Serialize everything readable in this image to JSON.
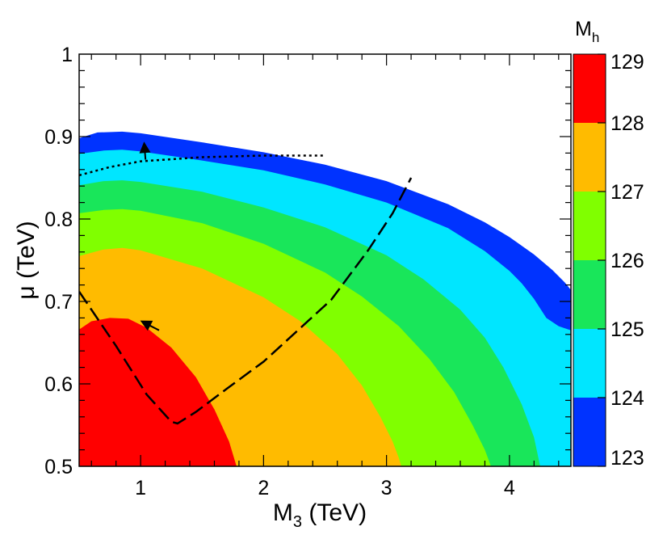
{
  "chart_data": {
    "type": "heatmap",
    "xlabel": {
      "main": "M",
      "sub": "3",
      "unit": " (TeV)"
    },
    "ylabel": "μ (TeV)",
    "xlim": [
      0.5,
      4.5
    ],
    "ylim": [
      0.5,
      1.0
    ],
    "x_ticks": [
      {
        "value": 1,
        "label": "1"
      },
      {
        "value": 2,
        "label": "2"
      },
      {
        "value": 3,
        "label": "3"
      },
      {
        "value": 4,
        "label": "4"
      }
    ],
    "y_ticks": [
      {
        "value": 0.5,
        "label": "0.5"
      },
      {
        "value": 0.6,
        "label": "0.6"
      },
      {
        "value": 0.7,
        "label": "0.7"
      },
      {
        "value": 0.8,
        "label": "0.8"
      },
      {
        "value": 0.9,
        "label": "0.9"
      },
      {
        "value": 1.0,
        "label": "1"
      }
    ],
    "colorbar": {
      "title": {
        "main": "M",
        "sub": "h"
      },
      "range": [
        123,
        129
      ],
      "tick_labels": [
        "123",
        "124",
        "125",
        "126",
        "127",
        "128",
        "129"
      ],
      "bands": [
        {
          "from": 123,
          "to": 124,
          "color": "#0033ff"
        },
        {
          "from": 124,
          "to": 125,
          "color": "#00e6ff"
        },
        {
          "from": 125,
          "to": 126,
          "color": "#19e65a"
        },
        {
          "from": 126,
          "to": 127,
          "color": "#80ff00"
        },
        {
          "from": 127,
          "to": 128,
          "color": "#ffbb00"
        },
        {
          "from": 128,
          "to": 129,
          "color": "#ff0000"
        }
      ]
    },
    "regions": [
      {
        "name": "Mh 123-124",
        "color": "#0033ff",
        "boundary": [
          [
            0.5,
            0.5
          ],
          [
            0.5,
            0.898
          ],
          [
            0.65,
            0.905
          ],
          [
            0.85,
            0.906
          ],
          [
            1.0,
            0.904
          ],
          [
            1.5,
            0.893
          ],
          [
            2.0,
            0.881
          ],
          [
            2.5,
            0.866
          ],
          [
            3.0,
            0.846
          ],
          [
            3.5,
            0.818
          ],
          [
            3.8,
            0.796
          ],
          [
            4.0,
            0.778
          ],
          [
            4.2,
            0.757
          ],
          [
            4.35,
            0.738
          ],
          [
            4.45,
            0.723
          ],
          [
            4.5,
            0.714
          ],
          [
            4.5,
            0.5
          ]
        ]
      },
      {
        "name": "Mh 124-125",
        "color": "#00e6ff",
        "boundary": [
          [
            0.5,
            0.5
          ],
          [
            0.5,
            0.879
          ],
          [
            0.7,
            0.883
          ],
          [
            0.85,
            0.884
          ],
          [
            1.0,
            0.882
          ],
          [
            1.5,
            0.871
          ],
          [
            2.0,
            0.859
          ],
          [
            2.5,
            0.842
          ],
          [
            3.0,
            0.82
          ],
          [
            3.5,
            0.789
          ],
          [
            3.8,
            0.761
          ],
          [
            4.0,
            0.737
          ],
          [
            4.1,
            0.722
          ],
          [
            4.2,
            0.703
          ],
          [
            4.3,
            0.68
          ],
          [
            4.4,
            0.67
          ],
          [
            4.5,
            0.665
          ],
          [
            4.5,
            0.5
          ]
        ]
      },
      {
        "name": "Mh 125-126",
        "color": "#19e65a",
        "boundary": [
          [
            0.5,
            0.5
          ],
          [
            0.5,
            0.841
          ],
          [
            0.7,
            0.846
          ],
          [
            0.85,
            0.847
          ],
          [
            1.0,
            0.845
          ],
          [
            1.5,
            0.833
          ],
          [
            2.0,
            0.814
          ],
          [
            2.5,
            0.79
          ],
          [
            3.0,
            0.756
          ],
          [
            3.3,
            0.727
          ],
          [
            3.6,
            0.69
          ],
          [
            3.8,
            0.656
          ],
          [
            3.95,
            0.62
          ],
          [
            4.1,
            0.575
          ],
          [
            4.2,
            0.535
          ],
          [
            4.25,
            0.5
          ]
        ]
      },
      {
        "name": "Mh 126-127",
        "color": "#80ff00",
        "boundary": [
          [
            0.5,
            0.5
          ],
          [
            0.5,
            0.807
          ],
          [
            0.7,
            0.811
          ],
          [
            0.85,
            0.812
          ],
          [
            1.0,
            0.81
          ],
          [
            1.5,
            0.795
          ],
          [
            2.0,
            0.77
          ],
          [
            2.5,
            0.735
          ],
          [
            2.8,
            0.706
          ],
          [
            3.1,
            0.67
          ],
          [
            3.35,
            0.63
          ],
          [
            3.55,
            0.59
          ],
          [
            3.7,
            0.55
          ],
          [
            3.8,
            0.52
          ],
          [
            3.85,
            0.5
          ]
        ]
      },
      {
        "name": "Mh 127-128",
        "color": "#ffbb00",
        "boundary": [
          [
            0.5,
            0.5
          ],
          [
            0.5,
            0.755
          ],
          [
            0.7,
            0.763
          ],
          [
            0.85,
            0.765
          ],
          [
            1.0,
            0.762
          ],
          [
            1.5,
            0.74
          ],
          [
            2.0,
            0.705
          ],
          [
            2.3,
            0.676
          ],
          [
            2.6,
            0.636
          ],
          [
            2.8,
            0.598
          ],
          [
            2.95,
            0.56
          ],
          [
            3.05,
            0.53
          ],
          [
            3.1,
            0.51
          ],
          [
            3.12,
            0.5
          ]
        ]
      },
      {
        "name": "Mh 128-129",
        "color": "#ff0000",
        "boundary": [
          [
            0.5,
            0.5
          ],
          [
            0.5,
            0.666
          ],
          [
            0.6,
            0.676
          ],
          [
            0.75,
            0.68
          ],
          [
            0.9,
            0.679
          ],
          [
            1.05,
            0.668
          ],
          [
            1.25,
            0.644
          ],
          [
            1.45,
            0.608
          ],
          [
            1.6,
            0.569
          ],
          [
            1.72,
            0.53
          ],
          [
            1.78,
            0.5
          ]
        ]
      }
    ],
    "curves": [
      {
        "name": "dashed-path",
        "style": "dashed",
        "points": [
          [
            0.5,
            0.712
          ],
          [
            0.8,
            0.646
          ],
          [
            1.05,
            0.587
          ],
          [
            1.25,
            0.554
          ],
          [
            1.3,
            0.552
          ],
          [
            1.45,
            0.566
          ],
          [
            1.7,
            0.594
          ],
          [
            2.0,
            0.627
          ],
          [
            2.25,
            0.661
          ],
          [
            2.55,
            0.702
          ],
          [
            2.85,
            0.762
          ],
          [
            3.05,
            0.807
          ],
          [
            3.2,
            0.85
          ]
        ],
        "arrow": {
          "from": [
            1.15,
            0.665
          ],
          "to": [
            1.02,
            0.675
          ]
        }
      },
      {
        "name": "dotted-path",
        "style": "dotted",
        "points": [
          [
            0.5,
            0.853
          ],
          [
            0.75,
            0.863
          ],
          [
            1.0,
            0.87
          ],
          [
            1.5,
            0.875
          ],
          [
            2.0,
            0.877
          ],
          [
            2.5,
            0.877
          ]
        ],
        "arrow": {
          "from": [
            1.04,
            0.872
          ],
          "to": [
            1.03,
            0.89
          ]
        }
      }
    ]
  }
}
